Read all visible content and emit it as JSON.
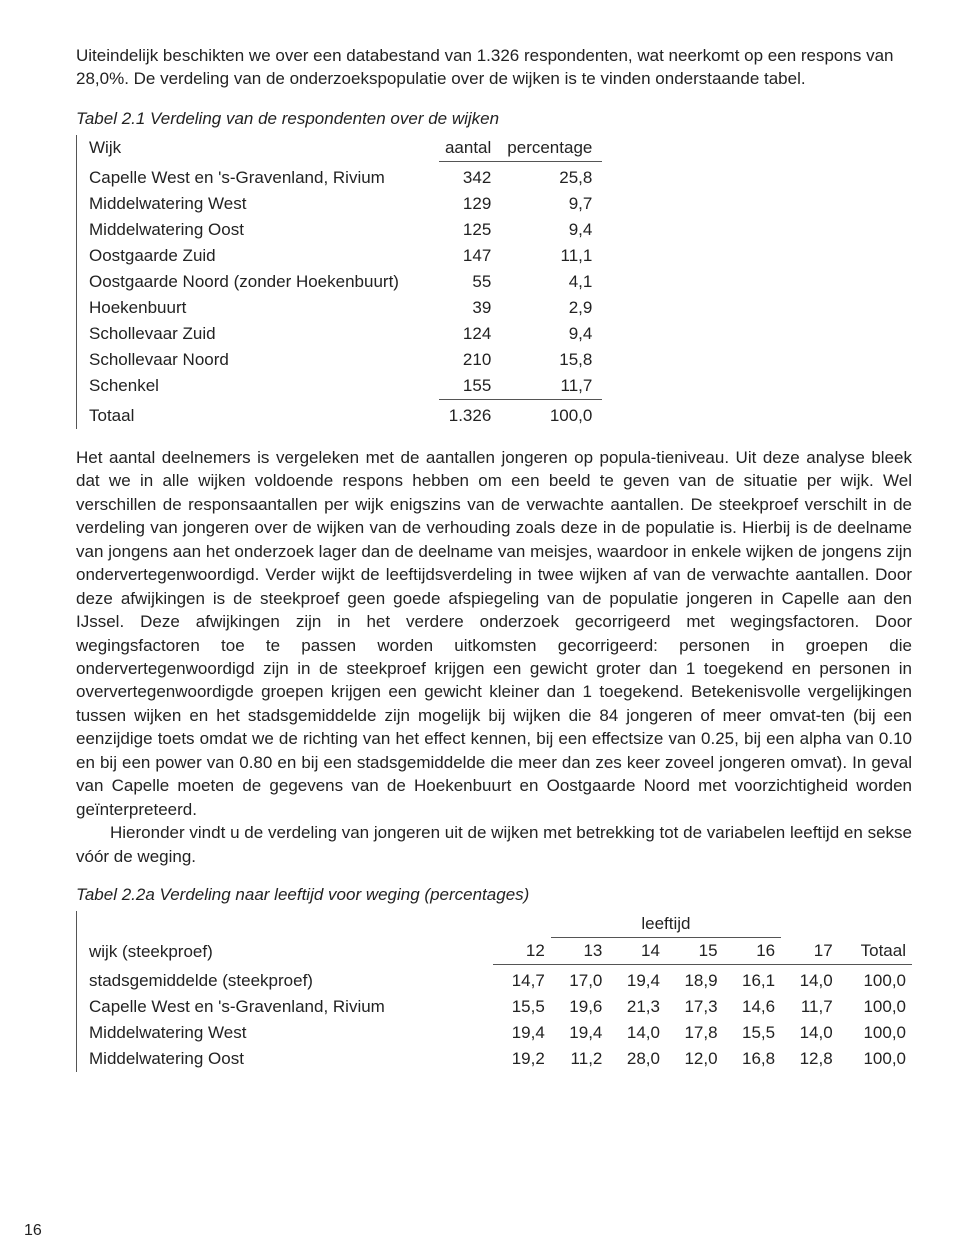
{
  "intro": "Uiteindelijk beschikten we over een databestand van 1.326 respondenten, wat neerkomt op een respons van 28,0%. De verdeling van de onderzoekspopulatie over de wijken is te vinden onderstaande tabel.",
  "table1": {
    "caption": "Tabel 2.1  Verdeling van de respondenten over de wijken",
    "columns": {
      "c0": "Wijk",
      "c1": "aantal",
      "c2": "percentage"
    },
    "rows": [
      {
        "wijk": "Capelle West en 's-Gravenland, Rivium",
        "aantal": "342",
        "pct": "25,8"
      },
      {
        "wijk": "Middelwatering West",
        "aantal": "129",
        "pct": "9,7"
      },
      {
        "wijk": "Middelwatering Oost",
        "aantal": "125",
        "pct": "9,4"
      },
      {
        "wijk": "Oostgaarde Zuid",
        "aantal": "147",
        "pct": "11,1"
      },
      {
        "wijk": "Oostgaarde Noord (zonder Hoekenbuurt)",
        "aantal": "55",
        "pct": "4,1"
      },
      {
        "wijk": "Hoekenbuurt",
        "aantal": "39",
        "pct": "2,9"
      },
      {
        "wijk": "Schollevaar Zuid",
        "aantal": "124",
        "pct": "9,4"
      },
      {
        "wijk": "Schollevaar Noord",
        "aantal": "210",
        "pct": "15,8"
      },
      {
        "wijk": "Schenkel",
        "aantal": "155",
        "pct": "11,7"
      }
    ],
    "total": {
      "wijk": "Totaal",
      "aantal": "1.326",
      "pct": "100,0"
    }
  },
  "body_para": "Het aantal deelnemers is vergeleken met de aantallen jongeren op popula-tieniveau. Uit deze analyse bleek dat we in alle wijken voldoende respons hebben om een beeld te geven van de situatie per wijk. Wel verschillen de responsaantallen per wijk enigszins van de verwachte aantallen. De steekproef verschilt in de verdeling van jongeren over de wijken van de verhouding zoals deze in de populatie is. Hierbij is de deelname van jongens aan het onderzoek lager dan de deelname van meisjes, waardoor in enkele wijken de jongens zijn ondervertegenwoordigd. Verder wijkt de leeftijdsverdeling in twee wijken af van de verwachte aantallen. Door deze afwijkingen is de steekproef geen goede afspiegeling van de populatie jongeren in Capelle aan den IJssel. Deze afwijkingen zijn in het verdere onderzoek gecorrigeerd met wegingsfactoren. Door wegingsfactoren toe te passen worden uitkomsten gecorrigeerd: personen in groepen die ondervertegenwoordigd zijn in de steekproef krijgen een gewicht groter dan 1 toegekend en personen in oververtegenwoordigde groepen krijgen een gewicht kleiner dan 1 toegekend. Betekenisvolle vergelijkingen tussen wijken en het stadsgemiddelde zijn mogelijk bij wijken die 84 jongeren of meer omvat-ten (bij een eenzijdige toets omdat we de richting van het effect kennen, bij een effectsize van 0.25, bij een alpha van 0.10 en bij een power van 0.80 en bij een stadsgemiddelde die meer dan zes keer zoveel jongeren omvat). In geval van Capelle moeten de gegevens van de Hoekenbuurt en Oostgaarde Noord met voorzichtigheid worden geïnterpreteerd.",
  "body_para2": "Hieronder vindt u de verdeling van jongeren uit de wijken met betrekking tot de variabelen leeftijd en sekse vóór de weging.",
  "table2": {
    "caption": "Tabel 2.2a  Verdeling naar leeftijd voor weging (percentages)",
    "super": "leeftijd",
    "columns": {
      "c0": "wijk (steekproef)",
      "c1": "12",
      "c2": "13",
      "c3": "14",
      "c4": "15",
      "c5": "16",
      "c6": "17",
      "c7": "Totaal"
    },
    "rows": [
      {
        "wijk": "stadsgemiddelde (steekproef)",
        "v": [
          "14,7",
          "17,0",
          "19,4",
          "18,9",
          "16,1",
          "14,0",
          "100,0"
        ]
      },
      {
        "wijk": "Capelle West en 's-Gravenland, Rivium",
        "v": [
          "15,5",
          "19,6",
          "21,3",
          "17,3",
          "14,6",
          "11,7",
          "100,0"
        ]
      },
      {
        "wijk": "Middelwatering West",
        "v": [
          "19,4",
          "19,4",
          "14,0",
          "17,8",
          "15,5",
          "14,0",
          "100,0"
        ]
      },
      {
        "wijk": "Middelwatering Oost",
        "v": [
          "19,2",
          "11,2",
          "28,0",
          "12,0",
          "16,8",
          "12,8",
          "100,0"
        ]
      }
    ]
  },
  "page_number": "16"
}
